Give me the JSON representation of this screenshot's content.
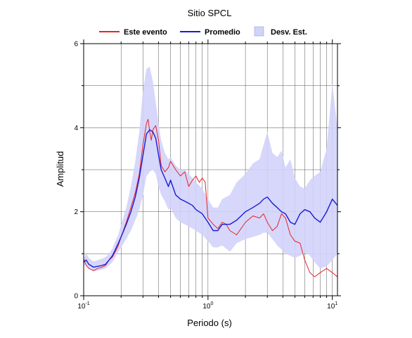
{
  "chart_data": {
    "type": "line",
    "title": "Sitio SPCL",
    "xlabel": "Periodo (s)",
    "ylabel": "Amplitud",
    "x_scale": "log",
    "xlim": [
      0.1,
      11
    ],
    "ylim": [
      0,
      6
    ],
    "grid": "major-minor-log-x, major-y",
    "legend_position": "top",
    "x_ticks": [
      {
        "value": 0.1,
        "base": "10",
        "exp": "-1"
      },
      {
        "value": 1,
        "base": "10",
        "exp": "0"
      },
      {
        "value": 10,
        "base": "10",
        "exp": "1"
      }
    ],
    "y_ticks": [
      0,
      2,
      4,
      6
    ],
    "series": [
      {
        "name": "Este evento",
        "color": "#e8222a",
        "x": [
          0.1,
          0.105,
          0.11,
          0.12,
          0.13,
          0.14,
          0.15,
          0.16,
          0.17,
          0.18,
          0.19,
          0.2,
          0.22,
          0.24,
          0.26,
          0.28,
          0.3,
          0.32,
          0.33,
          0.34,
          0.35,
          0.36,
          0.38,
          0.4,
          0.42,
          0.45,
          0.48,
          0.5,
          0.55,
          0.6,
          0.65,
          0.7,
          0.75,
          0.8,
          0.85,
          0.9,
          0.95,
          1.0,
          1.1,
          1.2,
          1.3,
          1.4,
          1.5,
          1.7,
          2.0,
          2.3,
          2.6,
          2.8,
          3.0,
          3.3,
          3.6,
          3.9,
          4.2,
          4.6,
          5.0,
          5.5,
          6.0,
          6.6,
          7.2,
          8.0,
          9.0,
          10.0,
          11.0
        ],
        "values": [
          0.88,
          0.72,
          0.65,
          0.6,
          0.65,
          0.68,
          0.72,
          0.85,
          0.92,
          1.05,
          1.2,
          1.4,
          1.75,
          2.1,
          2.45,
          2.9,
          3.6,
          4.1,
          4.2,
          3.9,
          3.7,
          3.95,
          4.05,
          3.7,
          3.1,
          2.95,
          3.05,
          3.2,
          3.0,
          2.85,
          2.95,
          2.6,
          2.75,
          2.85,
          2.7,
          2.8,
          2.7,
          1.85,
          1.7,
          1.6,
          1.75,
          1.7,
          1.55,
          1.45,
          1.75,
          1.9,
          1.85,
          1.95,
          1.75,
          1.55,
          1.65,
          1.95,
          1.85,
          1.45,
          1.3,
          1.25,
          0.85,
          0.55,
          0.45,
          0.55,
          0.65,
          0.55,
          0.45
        ]
      },
      {
        "name": "Promedio",
        "color": "#1a1ad8",
        "x": [
          0.1,
          0.105,
          0.11,
          0.12,
          0.13,
          0.14,
          0.15,
          0.16,
          0.17,
          0.18,
          0.19,
          0.2,
          0.22,
          0.24,
          0.26,
          0.28,
          0.3,
          0.32,
          0.34,
          0.36,
          0.38,
          0.4,
          0.42,
          0.45,
          0.48,
          0.5,
          0.55,
          0.6,
          0.65,
          0.7,
          0.75,
          0.8,
          0.9,
          1.0,
          1.1,
          1.2,
          1.3,
          1.5,
          1.7,
          2.0,
          2.3,
          2.6,
          2.8,
          3.0,
          3.3,
          3.6,
          3.9,
          4.2,
          4.6,
          5.0,
          5.5,
          6.0,
          6.6,
          7.2,
          8.0,
          9.0,
          10.0,
          11.0
        ],
        "values": [
          0.8,
          0.85,
          0.75,
          0.68,
          0.7,
          0.72,
          0.75,
          0.85,
          0.95,
          1.1,
          1.25,
          1.4,
          1.7,
          2.0,
          2.35,
          2.8,
          3.35,
          3.85,
          3.95,
          3.9,
          3.75,
          3.35,
          3.0,
          2.8,
          2.6,
          2.75,
          2.4,
          2.3,
          2.25,
          2.2,
          2.15,
          2.05,
          1.95,
          1.75,
          1.55,
          1.55,
          1.7,
          1.7,
          1.8,
          2.0,
          2.1,
          2.2,
          2.3,
          2.35,
          2.2,
          2.1,
          2.0,
          1.95,
          1.75,
          1.7,
          1.95,
          2.05,
          2.0,
          1.85,
          1.75,
          2.0,
          2.3,
          2.15
        ]
      }
    ],
    "band": {
      "name": "Desv. Est.",
      "color": "#d2d3fa",
      "x": [
        0.1,
        0.105,
        0.11,
        0.12,
        0.13,
        0.14,
        0.15,
        0.16,
        0.17,
        0.18,
        0.19,
        0.2,
        0.22,
        0.24,
        0.26,
        0.28,
        0.3,
        0.32,
        0.34,
        0.36,
        0.38,
        0.4,
        0.42,
        0.45,
        0.48,
        0.5,
        0.55,
        0.6,
        0.65,
        0.7,
        0.75,
        0.8,
        0.9,
        1.0,
        1.1,
        1.2,
        1.3,
        1.5,
        1.7,
        2.0,
        2.3,
        2.6,
        2.8,
        3.0,
        3.3,
        3.6,
        3.9,
        4.2,
        4.6,
        5.0,
        5.5,
        6.0,
        6.6,
        7.2,
        8.0,
        9.0,
        10.0,
        11.0
      ],
      "upper": [
        0.9,
        1.0,
        0.9,
        0.82,
        0.85,
        0.88,
        0.92,
        1.0,
        1.12,
        1.3,
        1.45,
        1.7,
        2.1,
        2.6,
        3.2,
        3.9,
        4.9,
        5.4,
        5.45,
        5.1,
        4.6,
        4.1,
        3.7,
        3.4,
        3.25,
        3.3,
        3.1,
        3.0,
        3.0,
        2.9,
        2.8,
        2.7,
        2.55,
        2.3,
        2.1,
        2.1,
        2.3,
        2.4,
        2.7,
        2.9,
        3.15,
        3.25,
        3.6,
        3.9,
        3.4,
        3.3,
        3.45,
        3.05,
        3.25,
        2.8,
        2.6,
        2.55,
        2.75,
        2.85,
        2.95,
        3.5,
        5.05,
        4.0
      ],
      "lower": [
        0.7,
        0.75,
        0.65,
        0.58,
        0.6,
        0.62,
        0.65,
        0.72,
        0.8,
        0.92,
        1.05,
        1.15,
        1.35,
        1.55,
        1.8,
        2.05,
        2.4,
        2.85,
        2.95,
        3.0,
        2.9,
        2.6,
        2.4,
        2.25,
        2.05,
        2.1,
        1.85,
        1.75,
        1.7,
        1.65,
        1.6,
        1.55,
        1.45,
        1.3,
        1.15,
        1.15,
        1.2,
        1.05,
        1.25,
        1.35,
        1.4,
        1.45,
        1.5,
        1.5,
        1.35,
        1.2,
        1.1,
        1.0,
        0.95,
        0.9,
        0.95,
        1.05,
        0.95,
        0.8,
        0.65,
        0.7,
        0.85,
        1.0
      ]
    }
  }
}
